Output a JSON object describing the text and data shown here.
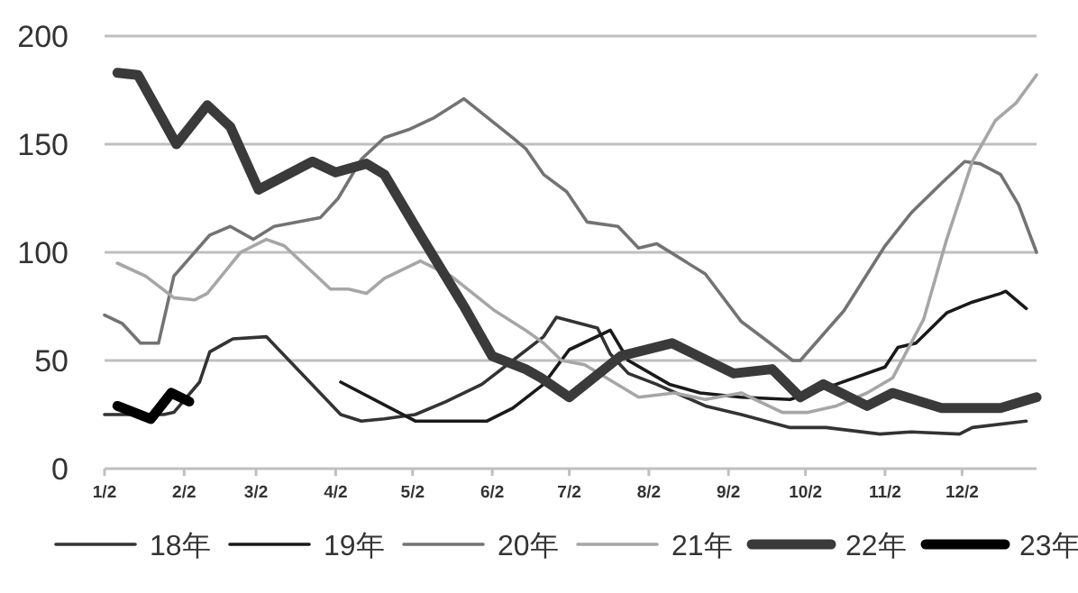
{
  "chart_data": {
    "type": "line",
    "xlim": [
      "--01-02",
      "--12-31"
    ],
    "xticks": [
      {
        "value": "--01-02",
        "label": "1/2"
      },
      {
        "value": "--02-02",
        "label": "2/2"
      },
      {
        "value": "--03-02",
        "label": "3/2"
      },
      {
        "value": "--04-02",
        "label": "4/2"
      },
      {
        "value": "--05-02",
        "label": "5/2"
      },
      {
        "value": "--06-02",
        "label": "6/2"
      },
      {
        "value": "--07-02",
        "label": "7/2"
      },
      {
        "value": "--08-02",
        "label": "8/2"
      },
      {
        "value": "--09-02",
        "label": "9/2"
      },
      {
        "value": "--10-02",
        "label": "10/2"
      },
      {
        "value": "--11-02",
        "label": "11/2"
      },
      {
        "value": "--12-02",
        "label": "12/2"
      }
    ],
    "ylim": [
      0,
      200
    ],
    "yticks": [
      0,
      50,
      100,
      150,
      200
    ],
    "grid": "y",
    "legend": "bottom",
    "marker": "none",
    "line_style": "solid",
    "series": [
      {
        "name": "18年",
        "color": "#333333",
        "x": [
          "--01-02",
          "--01-25",
          "--01-29",
          "--02-08",
          "--02-12",
          "--02-21",
          "--03-06",
          "--04-04",
          "--04-12",
          "--04-21",
          "--05-03",
          "--05-15",
          "--05-29",
          "--06-10",
          "--06-22",
          "--06-27",
          "--07-13",
          "--07-18",
          "--07-25",
          "--08-05",
          "--08-24",
          "--09-07",
          "--09-26",
          "--10-10",
          "--10-31",
          "--11-12",
          "--12-01",
          "--12-06",
          "--12-27"
        ],
        "values": [
          25,
          25,
          26,
          40,
          54,
          60,
          61,
          25,
          22,
          23,
          25,
          31,
          39,
          50,
          61,
          70,
          65,
          53,
          44,
          39,
          29,
          25,
          19,
          19,
          16,
          17,
          16,
          19,
          22
        ]
      },
      {
        "name": "19年",
        "color": "#1a1a1a",
        "x": [
          "--04-04",
          "--05-03",
          "--05-15",
          "--05-31",
          "--06-10",
          "--06-22",
          "--07-02",
          "--07-18",
          "--07-25",
          "--08-10",
          "--08-22",
          "--09-07",
          "--09-26",
          "--10-14",
          "--11-02",
          "--11-07",
          "--11-14",
          "--11-26",
          "--12-06",
          "--12-17",
          "--12-19",
          "--12-27"
        ],
        "values": [
          40,
          22,
          22,
          22,
          28,
          39,
          55,
          64,
          50,
          39,
          35,
          33,
          32,
          39,
          47,
          56,
          58,
          72,
          77,
          81,
          82,
          74
        ]
      },
      {
        "name": "20年",
        "color": "#737373",
        "x": [
          "--01-02",
          "--01-09",
          "--01-16",
          "--01-23",
          "--01-29",
          "--02-12",
          "--02-20",
          "--03-01",
          "--03-09",
          "--03-27",
          "--04-03",
          "--04-12",
          "--04-21",
          "--05-01",
          "--05-10",
          "--05-22",
          "--06-10",
          "--06-15",
          "--06-22",
          "--07-01",
          "--07-09",
          "--07-21",
          "--07-29",
          "--08-05",
          "--08-24",
          "--09-07",
          "--09-16",
          "--09-27",
          "--09-30",
          "--10-17",
          "--11-02",
          "--11-12",
          "--11-24",
          "--12-03",
          "--12-09",
          "--12-17",
          "--12-24",
          "--12-31"
        ],
        "values": [
          71,
          67,
          58,
          58,
          89,
          108,
          112,
          106,
          112,
          116,
          125,
          143,
          153,
          157,
          162,
          171,
          153,
          148,
          136,
          128,
          114,
          112,
          102,
          104,
          90,
          68,
          60,
          50,
          50,
          73,
          103,
          118,
          132,
          142,
          141,
          136,
          122,
          100
        ]
      },
      {
        "name": "21年",
        "color": "#a6a6a6",
        "x": [
          "--01-07",
          "--01-18",
          "--01-29",
          "--02-06",
          "--02-11",
          "--02-24",
          "--03-06",
          "--03-13",
          "--03-22",
          "--03-31",
          "--04-07",
          "--04-14",
          "--04-21",
          "--05-05",
          "--05-17",
          "--06-03",
          "--06-15",
          "--06-22",
          "--06-29",
          "--07-08",
          "--07-29",
          "--08-12",
          "--08-24",
          "--09-07",
          "--09-23",
          "--10-03",
          "--10-14",
          "--10-26",
          "--11-05",
          "--11-17",
          "--11-26",
          "--12-06",
          "--12-15",
          "--12-23",
          "--12-31"
        ],
        "values": [
          95,
          89,
          79,
          78,
          81,
          100,
          106,
          103,
          93,
          83,
          83,
          81,
          88,
          96,
          89,
          73,
          64,
          58,
          50,
          48,
          33,
          35,
          32,
          35,
          26,
          26,
          29,
          35,
          42,
          69,
          106,
          142,
          161,
          169,
          182
        ]
      },
      {
        "name": "22年",
        "color": "#3a3a3a",
        "x": [
          "--01-07",
          "--01-15",
          "--01-30",
          "--02-11",
          "--02-20",
          "--03-03",
          "--03-24",
          "--04-02",
          "--04-14",
          "--04-21",
          "--05-05",
          "--05-22",
          "--06-02",
          "--06-15",
          "--06-21",
          "--07-02",
          "--07-22",
          "--08-11",
          "--09-04",
          "--09-19",
          "--09-30",
          "--10-09",
          "--10-26",
          "--11-05",
          "--11-24",
          "--12-17",
          "--12-31"
        ],
        "values": [
          183,
          182,
          150,
          168,
          158,
          129,
          142,
          137,
          141,
          136,
          108,
          75,
          52,
          46,
          42,
          33,
          52,
          58,
          44,
          46,
          33,
          39,
          29,
          35,
          28,
          28,
          33
        ]
      },
      {
        "name": "23年",
        "color": "#000000",
        "x": [
          "--01-07",
          "--01-20",
          "--01-28",
          "--02-04"
        ],
        "values": [
          29,
          23,
          35,
          31
        ]
      }
    ]
  }
}
